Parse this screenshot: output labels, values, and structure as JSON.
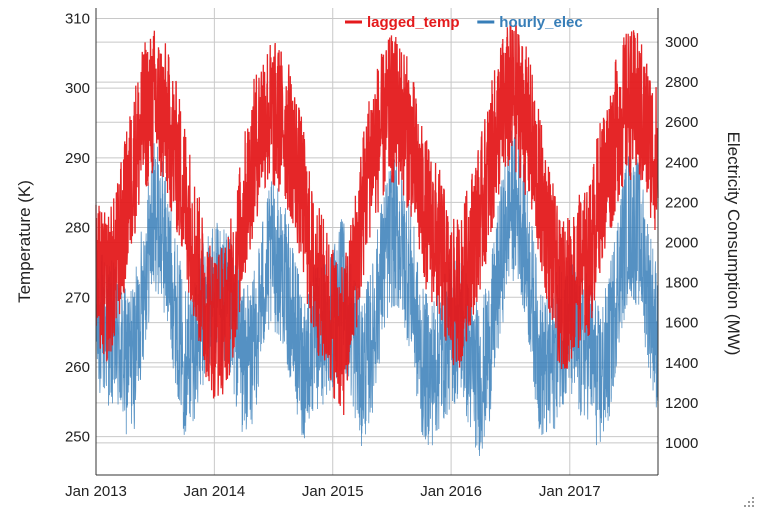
{
  "chart_data": {
    "type": "line",
    "x_axis": {
      "type": "date",
      "range": [
        "2013-01-01",
        "2017-09-30"
      ],
      "ticks": [
        "Jan 2013",
        "Jan 2014",
        "Jan 2015",
        "Jan 2016",
        "Jan 2017"
      ]
    },
    "y_left": {
      "label": "Temperature (K)",
      "ylim": [
        244.5,
        311.5
      ],
      "ticks": [
        250,
        260,
        270,
        280,
        290,
        300,
        310
      ]
    },
    "y_right": {
      "label": "Electricity Consumption (MW)",
      "ylim": [
        840,
        3170
      ],
      "ticks": [
        1000,
        1200,
        1400,
        1600,
        1800,
        2000,
        2200,
        2400,
        2600,
        2800,
        3000
      ]
    },
    "grid": true,
    "legend": {
      "placement": "top-right"
    },
    "series": [
      {
        "name": "lagged_temp",
        "color": "#e41a1c",
        "axis": "left",
        "points": [
          [
            "2013-01-01",
            273
          ],
          [
            "2013-02-01",
            271
          ],
          [
            "2013-03-01",
            274
          ],
          [
            "2013-04-01",
            282
          ],
          [
            "2013-05-01",
            290
          ],
          [
            "2013-06-01",
            296
          ],
          [
            "2013-07-01",
            298
          ],
          [
            "2013-08-01",
            296
          ],
          [
            "2013-09-01",
            291
          ],
          [
            "2013-10-01",
            285
          ],
          [
            "2013-11-01",
            277
          ],
          [
            "2013-12-01",
            270
          ],
          [
            "2014-01-01",
            266
          ],
          [
            "2014-02-01",
            267
          ],
          [
            "2014-03-01",
            272
          ],
          [
            "2014-04-01",
            282
          ],
          [
            "2014-05-01",
            290
          ],
          [
            "2014-06-01",
            296
          ],
          [
            "2014-07-01",
            296
          ],
          [
            "2014-08-01",
            295
          ],
          [
            "2014-09-01",
            291
          ],
          [
            "2014-10-01",
            284
          ],
          [
            "2014-11-01",
            274
          ],
          [
            "2014-12-01",
            271
          ],
          [
            "2015-01-01",
            267
          ],
          [
            "2015-02-01",
            263
          ],
          [
            "2015-03-01",
            271
          ],
          [
            "2015-04-01",
            282
          ],
          [
            "2015-05-01",
            291
          ],
          [
            "2015-06-01",
            294
          ],
          [
            "2015-07-01",
            297
          ],
          [
            "2015-08-01",
            296
          ],
          [
            "2015-09-01",
            292
          ],
          [
            "2015-10-01",
            284
          ],
          [
            "2015-11-01",
            280
          ],
          [
            "2015-12-01",
            277
          ],
          [
            "2016-01-01",
            270
          ],
          [
            "2016-02-01",
            271
          ],
          [
            "2016-03-01",
            277
          ],
          [
            "2016-04-01",
            282
          ],
          [
            "2016-05-01",
            289
          ],
          [
            "2016-06-01",
            296
          ],
          [
            "2016-07-01",
            299
          ],
          [
            "2016-08-01",
            298
          ],
          [
            "2016-09-01",
            293
          ],
          [
            "2016-10-01",
            285
          ],
          [
            "2016-11-01",
            278
          ],
          [
            "2016-12-01",
            270
          ],
          [
            "2017-01-01",
            271
          ],
          [
            "2017-02-01",
            274
          ],
          [
            "2017-03-01",
            275
          ],
          [
            "2017-04-01",
            284
          ],
          [
            "2017-05-01",
            289
          ],
          [
            "2017-06-01",
            295
          ],
          [
            "2017-07-01",
            298
          ],
          [
            "2017-08-01",
            297
          ],
          [
            "2017-09-01",
            293
          ],
          [
            "2017-09-30",
            289
          ]
        ]
      },
      {
        "name": "hourly_elec",
        "color": "#377eb8",
        "axis": "right",
        "points": [
          [
            "2013-01-01",
            1600
          ],
          [
            "2013-02-01",
            1580
          ],
          [
            "2013-03-01",
            1520
          ],
          [
            "2013-04-01",
            1400
          ],
          [
            "2013-05-01",
            1450
          ],
          [
            "2013-06-01",
            1850
          ],
          [
            "2013-07-01",
            2150
          ],
          [
            "2013-08-01",
            2000
          ],
          [
            "2013-09-01",
            1700
          ],
          [
            "2013-10-01",
            1400
          ],
          [
            "2013-11-01",
            1500
          ],
          [
            "2013-12-01",
            1650
          ],
          [
            "2014-01-01",
            1750
          ],
          [
            "2014-02-01",
            1700
          ],
          [
            "2014-03-01",
            1600
          ],
          [
            "2014-04-01",
            1400
          ],
          [
            "2014-05-01",
            1450
          ],
          [
            "2014-06-01",
            1800
          ],
          [
            "2014-07-01",
            1950
          ],
          [
            "2014-08-01",
            1850
          ],
          [
            "2014-09-01",
            1600
          ],
          [
            "2014-10-01",
            1380
          ],
          [
            "2014-11-01",
            1500
          ],
          [
            "2014-12-01",
            1550
          ],
          [
            "2015-01-01",
            1650
          ],
          [
            "2015-02-01",
            1750
          ],
          [
            "2015-03-01",
            1550
          ],
          [
            "2015-04-01",
            1350
          ],
          [
            "2015-05-01",
            1500
          ],
          [
            "2015-06-01",
            1850
          ],
          [
            "2015-07-01",
            2050
          ],
          [
            "2015-08-01",
            2000
          ],
          [
            "2015-09-01",
            1800
          ],
          [
            "2015-10-01",
            1400
          ],
          [
            "2015-11-01",
            1350
          ],
          [
            "2015-12-01",
            1450
          ],
          [
            "2016-01-01",
            1550
          ],
          [
            "2016-02-01",
            1600
          ],
          [
            "2016-03-01",
            1400
          ],
          [
            "2016-04-01",
            1300
          ],
          [
            "2016-05-01",
            1500
          ],
          [
            "2016-06-01",
            1900
          ],
          [
            "2016-07-01",
            2200
          ],
          [
            "2016-08-01",
            2150
          ],
          [
            "2016-09-01",
            1800
          ],
          [
            "2016-10-01",
            1400
          ],
          [
            "2016-11-01",
            1350
          ],
          [
            "2016-12-01",
            1550
          ],
          [
            "2017-01-01",
            1600
          ],
          [
            "2017-02-01",
            1450
          ],
          [
            "2017-03-01",
            1500
          ],
          [
            "2017-04-01",
            1300
          ],
          [
            "2017-05-01",
            1450
          ],
          [
            "2017-06-01",
            1850
          ],
          [
            "2017-07-01",
            2100
          ],
          [
            "2017-08-01",
            2050
          ],
          [
            "2017-09-01",
            1750
          ],
          [
            "2017-09-30",
            1500
          ]
        ]
      }
    ]
  }
}
